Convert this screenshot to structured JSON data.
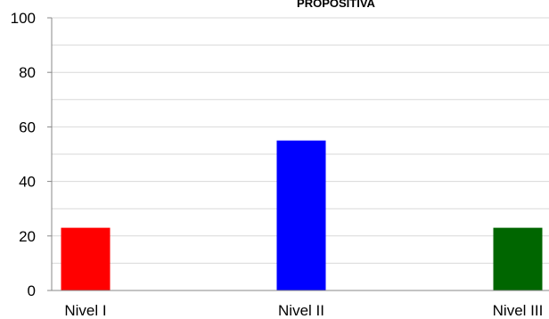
{
  "chart_data": {
    "type": "bar",
    "title": "PROPOSITIVA",
    "categories": [
      "Nivel I",
      "Nivel II",
      "Nivel III"
    ],
    "values": [
      23,
      55,
      23
    ],
    "colors": [
      "#ff0000",
      "#0000ff",
      "#006600"
    ],
    "ylim": [
      0,
      100
    ],
    "y_ticks": [
      "0",
      "20",
      "40",
      "60",
      "80",
      "100"
    ],
    "grid": true,
    "legend": "none"
  }
}
